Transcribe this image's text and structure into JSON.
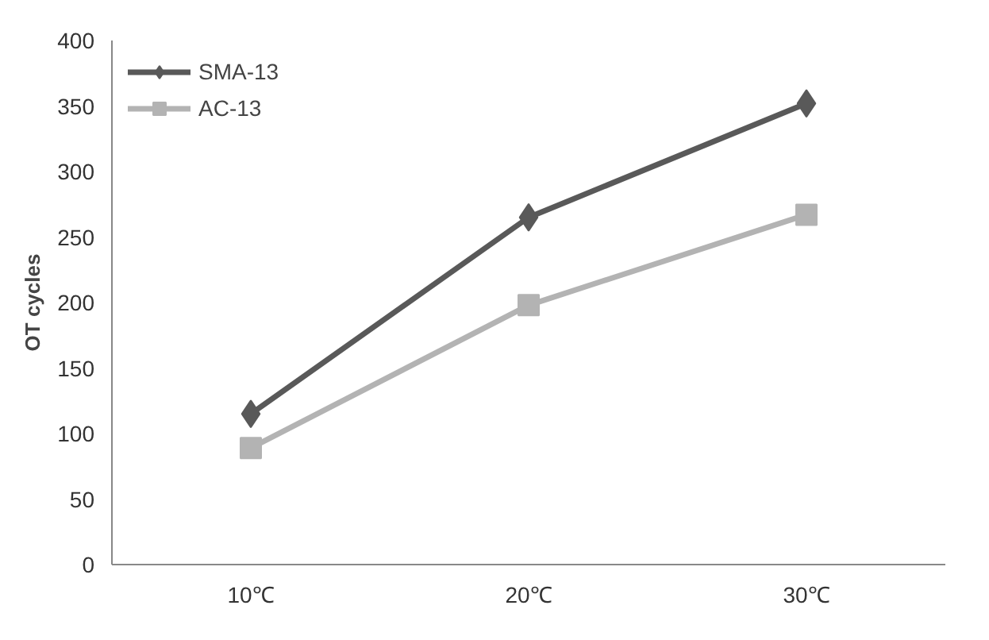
{
  "chart_data": {
    "type": "line",
    "ylabel": "OT cycles",
    "categories": [
      "10℃",
      "20℃",
      "30℃"
    ],
    "series": [
      {
        "name": "SMA-13",
        "color": "#595959",
        "values": [
          115,
          265,
          352
        ],
        "marker": "diamond"
      },
      {
        "name": "AC-13",
        "color": "#b3b3b3",
        "values": [
          89,
          198,
          267
        ],
        "marker": "square"
      }
    ],
    "ylim": [
      0,
      400
    ],
    "yticks": [
      0,
      50,
      100,
      150,
      200,
      250,
      300,
      350,
      400
    ],
    "grid": false,
    "legend": "top left"
  }
}
